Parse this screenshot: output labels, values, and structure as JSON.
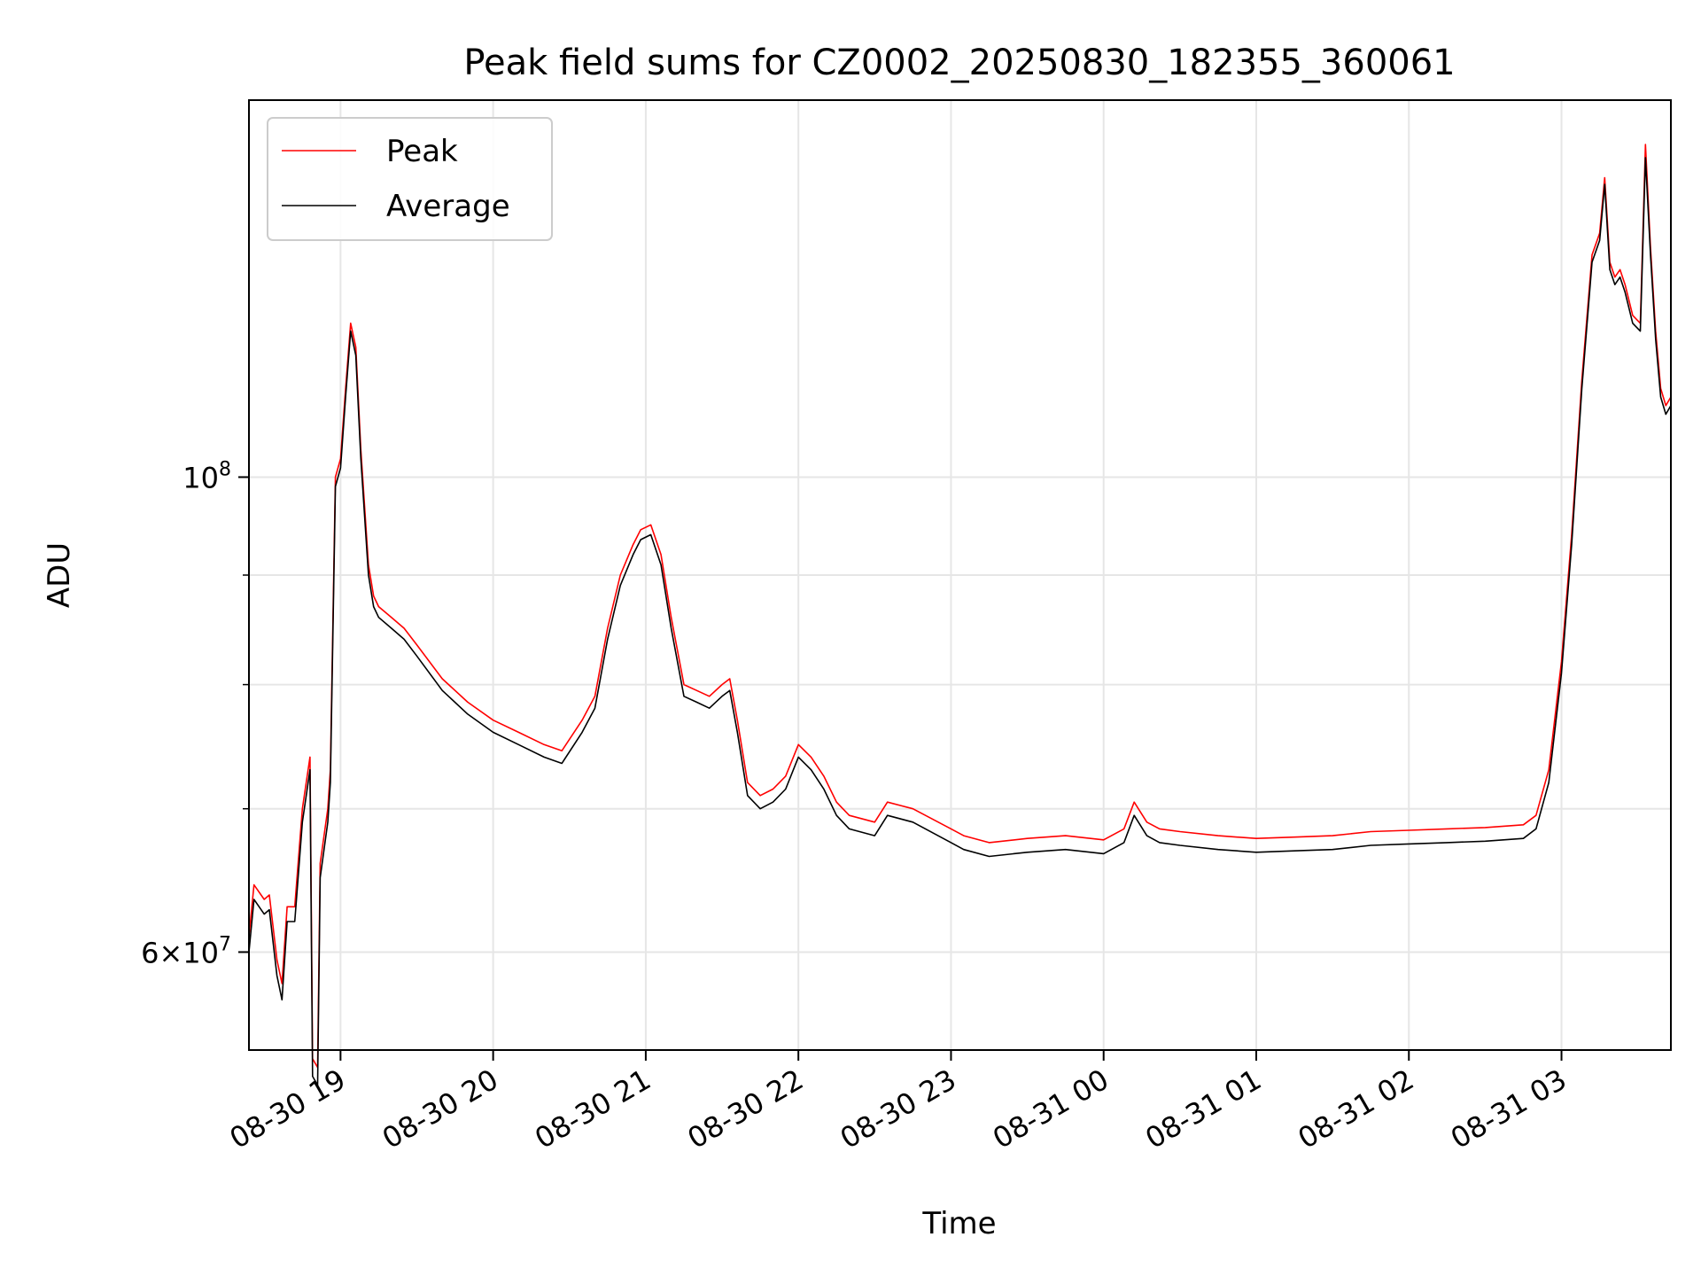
{
  "chart_data": {
    "type": "line",
    "title": "Peak field sums for CZ0002_20250830_182355_360061",
    "xlabel": "Time",
    "ylabel": "ADU",
    "y_scale": "log",
    "grid": true,
    "legend_position": "top-left",
    "xlim": [
      "2025-08-30 18:24",
      "2025-08-31 03:43"
    ],
    "ylim": [
      54000000,
      150000000
    ],
    "x_ticks": [
      {
        "t": "2025-08-30 19:00",
        "label": "08-30 19"
      },
      {
        "t": "2025-08-30 20:00",
        "label": "08-30 20"
      },
      {
        "t": "2025-08-30 21:00",
        "label": "08-30 21"
      },
      {
        "t": "2025-08-30 22:00",
        "label": "08-30 22"
      },
      {
        "t": "2025-08-30 23:00",
        "label": "08-30 23"
      },
      {
        "t": "2025-08-31 00:00",
        "label": "08-31 00"
      },
      {
        "t": "2025-08-31 01:00",
        "label": "08-31 01"
      },
      {
        "t": "2025-08-31 02:00",
        "label": "08-31 02"
      },
      {
        "t": "2025-08-31 03:00",
        "label": "08-31 03"
      }
    ],
    "y_major_ticks": [
      {
        "value": 60000000,
        "mantissa": "6",
        "base": "10",
        "exp": "7"
      },
      {
        "value": 100000000,
        "mantissa": "",
        "base": "10",
        "exp": "8"
      }
    ],
    "y_minor_ticks": [
      70000000,
      80000000,
      90000000
    ],
    "x": [
      "2025-08-30 18:24",
      "2025-08-30 18:26",
      "2025-08-30 18:30",
      "2025-08-30 18:32",
      "2025-08-30 18:35",
      "2025-08-30 18:37",
      "2025-08-30 18:39",
      "2025-08-30 18:42",
      "2025-08-30 18:45",
      "2025-08-30 18:48",
      "2025-08-30 18:49",
      "2025-08-30 18:51",
      "2025-08-30 18:52",
      "2025-08-30 18:55",
      "2025-08-30 18:56",
      "2025-08-30 18:58",
      "2025-08-30 19:00",
      "2025-08-30 19:02",
      "2025-08-30 19:04",
      "2025-08-30 19:06",
      "2025-08-30 19:08",
      "2025-08-30 19:11",
      "2025-08-30 19:13",
      "2025-08-30 19:15",
      "2025-08-30 19:20",
      "2025-08-30 19:25",
      "2025-08-30 19:30",
      "2025-08-30 19:40",
      "2025-08-30 19:50",
      "2025-08-30 20:00",
      "2025-08-30 20:10",
      "2025-08-30 20:20",
      "2025-08-30 20:27",
      "2025-08-30 20:35",
      "2025-08-30 20:40",
      "2025-08-30 20:45",
      "2025-08-30 20:50",
      "2025-08-30 20:55",
      "2025-08-30 20:58",
      "2025-08-30 21:02",
      "2025-08-30 21:06",
      "2025-08-30 21:10",
      "2025-08-30 21:15",
      "2025-08-30 21:20",
      "2025-08-30 21:25",
      "2025-08-30 21:30",
      "2025-08-30 21:33",
      "2025-08-30 21:36",
      "2025-08-30 21:40",
      "2025-08-30 21:45",
      "2025-08-30 21:50",
      "2025-08-30 21:55",
      "2025-08-30 22:00",
      "2025-08-30 22:05",
      "2025-08-30 22:10",
      "2025-08-30 22:15",
      "2025-08-30 22:20",
      "2025-08-30 22:30",
      "2025-08-30 22:35",
      "2025-08-30 22:45",
      "2025-08-30 23:00",
      "2025-08-30 23:05",
      "2025-08-30 23:15",
      "2025-08-30 23:30",
      "2025-08-30 23:45",
      "2025-08-31 00:00",
      "2025-08-31 00:08",
      "2025-08-31 00:12",
      "2025-08-31 00:17",
      "2025-08-31 00:22",
      "2025-08-31 00:30",
      "2025-08-31 00:45",
      "2025-08-31 01:00",
      "2025-08-31 01:15",
      "2025-08-31 01:30",
      "2025-08-31 01:45",
      "2025-08-31 02:00",
      "2025-08-31 02:15",
      "2025-08-31 02:30",
      "2025-08-31 02:45",
      "2025-08-31 02:50",
      "2025-08-31 02:55",
      "2025-08-31 03:00",
      "2025-08-31 03:04",
      "2025-08-31 03:08",
      "2025-08-31 03:12",
      "2025-08-31 03:15",
      "2025-08-31 03:17",
      "2025-08-31 03:19",
      "2025-08-31 03:21",
      "2025-08-31 03:23",
      "2025-08-31 03:25",
      "2025-08-31 03:28",
      "2025-08-31 03:31",
      "2025-08-31 03:33",
      "2025-08-31 03:35",
      "2025-08-31 03:37",
      "2025-08-31 03:39",
      "2025-08-31 03:41",
      "2025-08-31 03:43"
    ],
    "series": [
      {
        "name": "Peak",
        "color": "#ff0000",
        "values": [
          61000000,
          64500000,
          63500000,
          63800000,
          59500000,
          58000000,
          63000000,
          63000000,
          70000000,
          74000000,
          53500000,
          53000000,
          66000000,
          70000000,
          73000000,
          100000000,
          102000000,
          110000000,
          118000000,
          115000000,
          103000000,
          91000000,
          88000000,
          87000000,
          86000000,
          85000000,
          83500000,
          80500000,
          78500000,
          77000000,
          76000000,
          75000000,
          74500000,
          77000000,
          79000000,
          85000000,
          90000000,
          93000000,
          94500000,
          95000000,
          92000000,
          86000000,
          80000000,
          79500000,
          79000000,
          80000000,
          80500000,
          77000000,
          72000000,
          71000000,
          71500000,
          72500000,
          75000000,
          74000000,
          72500000,
          70500000,
          69500000,
          69000000,
          70500000,
          70000000,
          68500000,
          68000000,
          67500000,
          67800000,
          68000000,
          67700000,
          68500000,
          70500000,
          69000000,
          68500000,
          68300000,
          68000000,
          67800000,
          67900000,
          68000000,
          68300000,
          68400000,
          68500000,
          68600000,
          68800000,
          69500000,
          73000000,
          82000000,
          94000000,
          111000000,
          127000000,
          130000000,
          138000000,
          126000000,
          124000000,
          125000000,
          123000000,
          119000000,
          118000000,
          143000000,
          128000000,
          117000000,
          110000000,
          108000000,
          109000000
        ]
      },
      {
        "name": "Average",
        "color": "#000000",
        "values": [
          60000000,
          63500000,
          62500000,
          62800000,
          58500000,
          57000000,
          62000000,
          62000000,
          69000000,
          73000000,
          52500000,
          52000000,
          65000000,
          69000000,
          72000000,
          99000000,
          101000000,
          109000000,
          117000000,
          114000000,
          102000000,
          90000000,
          87000000,
          86000000,
          85000000,
          84000000,
          82500000,
          79500000,
          77500000,
          76000000,
          75000000,
          74000000,
          73500000,
          76000000,
          78000000,
          84000000,
          89000000,
          92000000,
          93500000,
          94000000,
          91000000,
          85000000,
          79000000,
          78500000,
          78000000,
          79000000,
          79500000,
          76000000,
          71000000,
          70000000,
          70500000,
          71500000,
          74000000,
          73000000,
          71500000,
          69500000,
          68500000,
          68000000,
          69500000,
          69000000,
          67500000,
          67000000,
          66500000,
          66800000,
          67000000,
          66700000,
          67500000,
          69500000,
          68000000,
          67500000,
          67300000,
          67000000,
          66800000,
          66900000,
          67000000,
          67300000,
          67400000,
          67500000,
          67600000,
          67800000,
          68500000,
          72000000,
          81000000,
          93000000,
          110000000,
          126000000,
          129000000,
          137000000,
          125000000,
          123000000,
          124000000,
          122000000,
          118000000,
          117000000,
          141000000,
          127000000,
          116000000,
          109000000,
          107000000,
          108000000
        ]
      }
    ]
  }
}
